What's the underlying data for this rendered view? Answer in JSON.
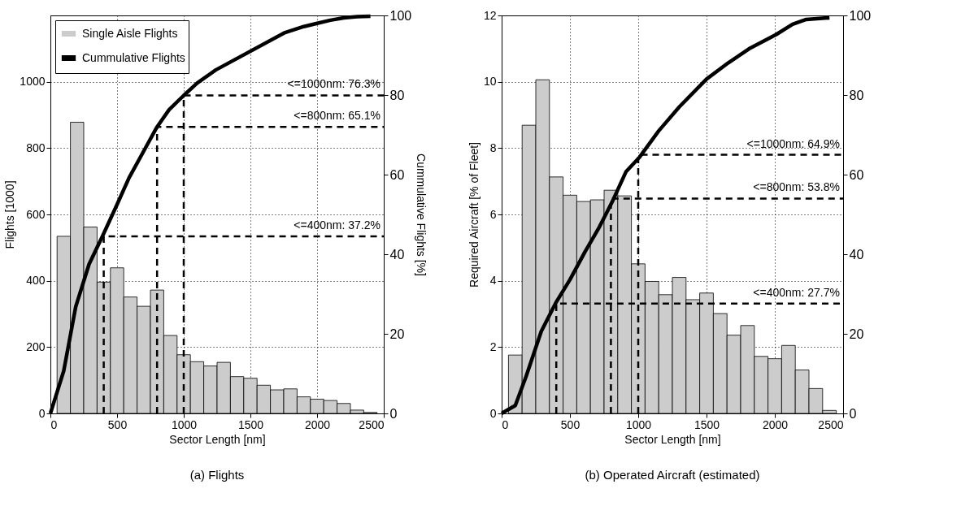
{
  "chart_data": [
    {
      "type": "histogram",
      "title": "(a) Flights",
      "xlabel": "Sector Length [nm]",
      "ylabel": "Flights [1000]",
      "y2label": "Cummulative Flights [%]",
      "xlim": [
        0,
        2500
      ],
      "xticks": [
        0,
        500,
        1000,
        1500,
        2000,
        2500
      ],
      "ylim": [
        0,
        1200
      ],
      "yticks": [
        0,
        200,
        400,
        600,
        800,
        1000
      ],
      "y2lim": [
        0,
        100
      ],
      "y2ticks": [
        0,
        20,
        40,
        60,
        80,
        100
      ],
      "grid": true,
      "legend": "top left",
      "bins": [
        50,
        150,
        250,
        350,
        450,
        550,
        650,
        750,
        850,
        950,
        1050,
        1150,
        1250,
        1350,
        1450,
        1550,
        1650,
        1750,
        1850,
        1950,
        2050,
        2150,
        2250,
        2350,
        2450
      ],
      "series": [
        {
          "name": "Single Aisle Flights",
          "color": "#cccccc",
          "values": [
            534,
            878,
            562,
            396,
            439,
            351,
            323,
            372,
            235,
            177,
            156,
            143,
            154,
            111,
            106,
            85,
            71,
            74,
            50,
            43,
            39,
            30,
            10,
            3
          ]
        },
        {
          "name": "Cummulative Flights",
          "type": "line",
          "axis": "y2",
          "color": "#000000",
          "x": [
            0,
            100,
            190,
            290,
            390,
            500,
            590,
            690,
            800,
            890,
            1000,
            1100,
            1240,
            1760,
            1900,
            2000,
            2100,
            2200,
            2300,
            2400
          ],
          "values": [
            0,
            10.7,
            26.8,
            37.5,
            44.5,
            52.5,
            59.2,
            65.3,
            72,
            76.3,
            79.9,
            83,
            86.3,
            95.7,
            97.2,
            98,
            98.8,
            99.4,
            99.7,
            99.8
          ]
        },
        {
          "type": "line",
          "axis": "y2",
          "color": "#000000",
          "line_style": "dashed",
          "x": [
            400,
            400,
            2500
          ],
          "values": [
            0,
            44.5,
            44.5
          ]
        },
        {
          "type": "line",
          "axis": "y2",
          "color": "#000000",
          "line_style": "dashed",
          "x": [
            800,
            800,
            2500
          ],
          "values": [
            0,
            72,
            72
          ]
        },
        {
          "type": "line",
          "axis": "y2",
          "color": "#000000",
          "line_style": "dashed",
          "x": [
            1000,
            1000,
            2500
          ],
          "values": [
            0,
            79.9,
            79.9
          ]
        }
      ],
      "annotations": [
        "<=400nm: 37.2%",
        "<=800nm: 65.1%",
        "<=1000nm: 76.3%"
      ]
    },
    {
      "type": "histogram",
      "title": "(b) Operated Aircraft (estimated)",
      "xlabel": "Sector Length [nm]",
      "ylabel": "Required Aircraft [% of Fleet]",
      "xlim": [
        0,
        2500
      ],
      "xticks": [
        0,
        500,
        1000,
        1500,
        2000,
        2500
      ],
      "ylim": [
        0,
        12
      ],
      "yticks": [
        0,
        2,
        4,
        6,
        8,
        10,
        12
      ],
      "y2lim": [
        0,
        100
      ],
      "y2ticks": [
        0,
        20,
        40,
        60,
        80,
        100
      ],
      "grid": true,
      "legend": "top left",
      "bins": [
        50,
        150,
        250,
        350,
        450,
        550,
        650,
        750,
        850,
        950,
        1050,
        1150,
        1250,
        1350,
        1450,
        1550,
        1650,
        1750,
        1850,
        1950,
        2050,
        2150,
        2250,
        2350,
        2450
      ],
      "series": [
        {
          "name": "Single Aisle Flights",
          "color": "#cccccc",
          "values": [
            1.76,
            8.69,
            10.06,
            7.13,
            6.58,
            6.39,
            6.44,
            6.73,
            6.56,
            4.51,
            3.98,
            3.58,
            4.1,
            3.43,
            3.63,
            3.01,
            2.36,
            2.65,
            1.72,
            1.65,
            2.05,
            1.31,
            0.75,
            0.09
          ]
        },
        {
          "name": "Cummulative Flights",
          "type": "line",
          "axis": "y2",
          "color": "#000000",
          "x": [
            0,
            100,
            180,
            290,
            400,
            500,
            610,
            710,
            810,
            910,
            1010,
            1150,
            1300,
            1500,
            1660,
            1820,
            2010,
            2130,
            2230,
            2400
          ],
          "values": [
            0,
            2,
            9.4,
            20.6,
            28,
            33.6,
            40.6,
            46.5,
            53.2,
            60.7,
            64.4,
            71,
            77,
            84,
            88.1,
            91.8,
            95.2,
            97.8,
            99,
            99.4
          ]
        },
        {
          "type": "line",
          "axis": "y2",
          "color": "#000000",
          "line_style": "dashed",
          "x": [
            400,
            400,
            2500
          ],
          "values": [
            0,
            27.6,
            27.6
          ]
        },
        {
          "type": "line",
          "axis": "y2",
          "color": "#000000",
          "line_style": "dashed",
          "x": [
            800,
            800,
            2500
          ],
          "values": [
            0,
            54,
            54
          ]
        },
        {
          "type": "line",
          "axis": "y2",
          "color": "#000000",
          "line_style": "dashed",
          "x": [
            1000,
            1000,
            2500
          ],
          "values": [
            0,
            65,
            65
          ]
        }
      ],
      "annotations": [
        "<=400nm: 27.7%",
        "<=800nm: 53.8%",
        "<=1000nm: 64.9%"
      ]
    }
  ]
}
